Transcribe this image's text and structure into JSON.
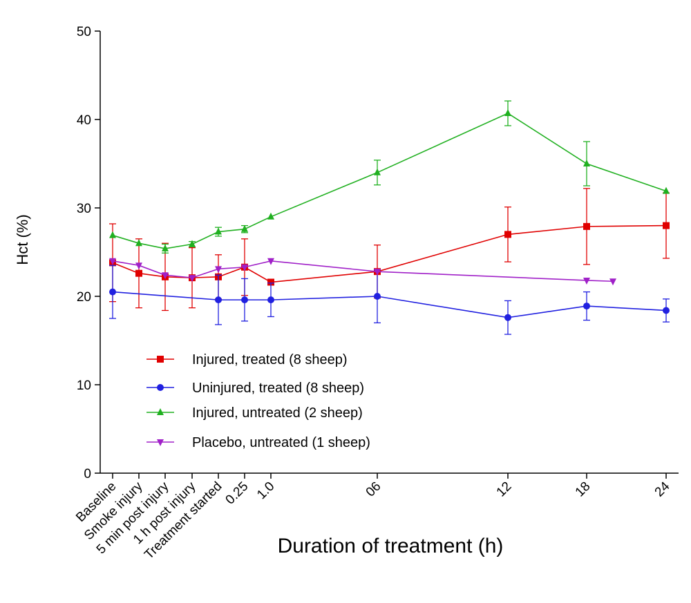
{
  "chart_data": {
    "type": "line",
    "xlabel": "Duration of treatment (h)",
    "ylabel": "Hct (%)",
    "ylim": [
      0,
      50
    ],
    "yticks": [
      0,
      10,
      20,
      30,
      40,
      50
    ],
    "x_ticks": [
      "Baseline",
      "Smoke injury",
      "5 min post injury",
      "1 h post injury",
      "Treatment started",
      "0.25",
      "1.0",
      "06",
      "12",
      "18",
      "24"
    ],
    "grid": false,
    "legend_position": "lower-left",
    "series": [
      {
        "name": "Injured, treated (8 sheep)",
        "color": "#e00000",
        "marker": "square",
        "points": [
          {
            "x": "Baseline",
            "y": 23.8,
            "err": 4.4
          },
          {
            "x": "Smoke injury",
            "y": 22.6,
            "err": 3.9
          },
          {
            "x": "5 min post injury",
            "y": 22.2,
            "err": 3.8
          },
          {
            "x": "1 h post injury",
            "y": 22.1,
            "err": 3.4
          },
          {
            "x": "Treatment started",
            "y": 22.2,
            "err": 2.5
          },
          {
            "x": "0.25",
            "y": 23.3,
            "err": 3.2
          },
          {
            "x": "1.0",
            "y": 21.6,
            "err": 0
          },
          {
            "x": "06",
            "y": 22.8,
            "err": 3.0
          },
          {
            "x": "12",
            "y": 27.0,
            "err": 3.1
          },
          {
            "x": "18",
            "y": 27.9,
            "err": 4.3
          },
          {
            "x": "24",
            "y": 28.0,
            "err": 3.7
          }
        ]
      },
      {
        "name": "Uninjured, treated (8 sheep)",
        "color": "#2020e0",
        "marker": "circle",
        "points": [
          {
            "x": "Baseline",
            "y": 20.5,
            "err": 3.0
          },
          {
            "x": "Treatment started",
            "y": 19.6,
            "err": 2.8
          },
          {
            "x": "0.25",
            "y": 19.6,
            "err": 2.4
          },
          {
            "x": "1.0",
            "y": 19.6,
            "err": 1.9
          },
          {
            "x": "06",
            "y": 20.0,
            "err": 3.0
          },
          {
            "x": "12",
            "y": 17.6,
            "err": 1.9
          },
          {
            "x": "18",
            "y": 18.9,
            "err": 1.6
          },
          {
            "x": "24",
            "y": 18.4,
            "err": 1.3
          }
        ]
      },
      {
        "name": "Injured, untreated (2 sheep)",
        "color": "#20b020",
        "marker": "triangle-up",
        "points": [
          {
            "x": "Baseline",
            "y": 26.9,
            "err": 0
          },
          {
            "x": "Smoke injury",
            "y": 26.0,
            "err": 0
          },
          {
            "x": "5 min post injury",
            "y": 25.4,
            "err": 0.5
          },
          {
            "x": "1 h post injury",
            "y": 25.9,
            "err": 0.3
          },
          {
            "x": "Treatment started",
            "y": 27.3,
            "err": 0.5
          },
          {
            "x": "0.25",
            "y": 27.6,
            "err": 0.4
          },
          {
            "x": "1.0",
            "y": 29.0,
            "err": 0
          },
          {
            "x": "06",
            "y": 34.0,
            "err": 1.4
          },
          {
            "x": "12",
            "y": 40.7,
            "err": 1.4
          },
          {
            "x": "18",
            "y": 35.0,
            "err": 2.5
          },
          {
            "x": "24",
            "y": 31.9,
            "err": 0
          }
        ]
      },
      {
        "name": "Placebo, untreated (1 sheep)",
        "color": "#a020c8",
        "marker": "triangle-down",
        "points": [
          {
            "x": "Baseline",
            "y": 24.0
          },
          {
            "x": "Smoke injury",
            "y": 23.5
          },
          {
            "x": "5 min post injury",
            "y": 22.4
          },
          {
            "x": "1 h post injury",
            "y": 22.1
          },
          {
            "x": "Treatment started",
            "y": 23.1
          },
          {
            "x": "0.25",
            "y": 23.3
          },
          {
            "x": "1.0",
            "y": 24.0
          },
          {
            "x": "06",
            "y": 22.8
          },
          {
            "x": "18",
            "y": 21.8
          },
          {
            "x": "20",
            "y": 21.7
          }
        ]
      }
    ]
  }
}
